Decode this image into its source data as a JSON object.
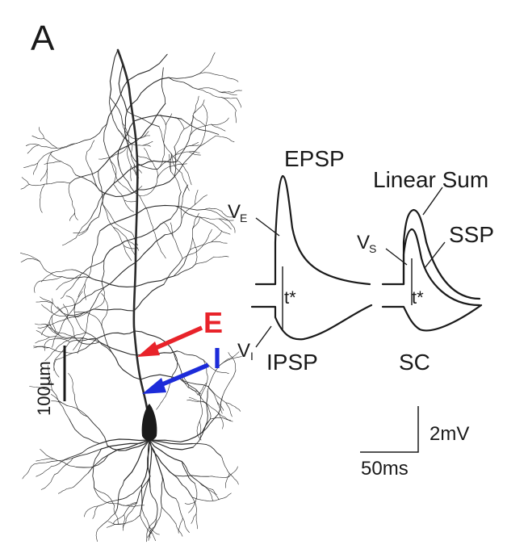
{
  "panel_label": "A",
  "neuron": {
    "scale_bar_label": "100µm"
  },
  "inputs": {
    "excitatory": {
      "label": "E",
      "color": "#e8232a"
    },
    "inhibitory": {
      "label": "I",
      "color": "#1c2bd9"
    }
  },
  "traces": {
    "epsp_label": "EPSP",
    "ipsp_label": "IPSP",
    "linear_sum_label": "Linear Sum",
    "ssp_label": "SSP",
    "sc_label": "SC",
    "ve_label": "V",
    "ve_sub": "E",
    "vi_label": "V",
    "vi_sub": "I",
    "vs_label": "V",
    "vs_sub": "S",
    "tstar_left": "t*",
    "tstar_right": "t*"
  },
  "scale_bar": {
    "voltage_label": "2mV",
    "time_label": "50ms"
  }
}
